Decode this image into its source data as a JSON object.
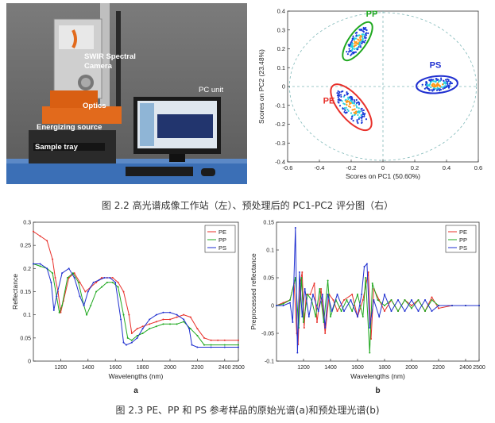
{
  "photo": {
    "labels": {
      "camera_line1": "SWIR Spectral",
      "camera_line2": "Camera",
      "pc_unit": "PC unit",
      "optics": "Optics",
      "energizing_source": "Energizing source",
      "sample_tray": "Sample tray"
    }
  },
  "captions": {
    "fig22": "图 2.2  高光谱成像工作站（左）、预处理后的 PC1-PC2 评分图（右）",
    "fig23": "图 2.3 PE、PP 和 PS 参考样品的原始光谱(a)和预处理光谱(b)"
  },
  "colors": {
    "PE": "#e8302a",
    "PP": "#1fa81f",
    "PS": "#2030d0",
    "ellipse_guide": "#7fb8b8"
  },
  "chart_data": [
    {
      "type": "scatter",
      "xlabel": "Scores on PC1 (50.60%)",
      "ylabel": "Scores on PC2 (23.48%)",
      "xlim": [
        -0.6,
        0.6
      ],
      "ylim": [
        -0.4,
        0.4
      ],
      "xticks": [
        "-0.6",
        "-0.4",
        "-0.2",
        "0",
        "0.2",
        "0.4",
        "0.6"
      ],
      "yticks": [
        "0.4",
        "0.3",
        "0.2",
        "0.1",
        "0",
        "-0.1",
        "-0.2",
        "-0.3",
        "-0.4"
      ],
      "grid": false,
      "clusters": [
        {
          "name": "PP",
          "center": [
            -0.16,
            0.24
          ],
          "semi_axes": [
            0.055,
            0.12
          ],
          "angle_deg": 35
        },
        {
          "name": "PS",
          "center": [
            0.34,
            0.01
          ],
          "semi_axes": [
            0.13,
            0.045
          ],
          "angle_deg": -5
        },
        {
          "name": "PE",
          "center": [
            -0.2,
            -0.11
          ],
          "semi_axes": [
            0.075,
            0.15
          ],
          "angle_deg": -40
        }
      ]
    },
    {
      "type": "line",
      "panel_label": "a",
      "xlabel": "Wavelengths (nm)",
      "ylabel": "Reflectance",
      "xlim": [
        1000,
        2500
      ],
      "ylim": [
        0,
        0.3
      ],
      "xticks": [
        "1200",
        "1400",
        "1600",
        "1800",
        "2000",
        "2200",
        "2400",
        "2500"
      ],
      "yticks": [
        "0.3",
        "0.25",
        "0.2",
        "0.15",
        "0.1",
        "0.05",
        "0"
      ],
      "legend": "top-right",
      "series": [
        {
          "name": "PE",
          "points": [
            [
              1000,
              0.28
            ],
            [
              1050,
              0.27
            ],
            [
              1100,
              0.26
            ],
            [
              1140,
              0.22
            ],
            [
              1160,
              0.18
            ],
            [
              1180,
              0.15
            ],
            [
              1200,
              0.105
            ],
            [
              1220,
              0.13
            ],
            [
              1260,
              0.18
            ],
            [
              1300,
              0.19
            ],
            [
              1340,
              0.17
            ],
            [
              1380,
              0.15
            ],
            [
              1420,
              0.16
            ],
            [
              1460,
              0.17
            ],
            [
              1500,
              0.18
            ],
            [
              1540,
              0.18
            ],
            [
              1580,
              0.18
            ],
            [
              1620,
              0.17
            ],
            [
              1660,
              0.15
            ],
            [
              1700,
              0.1
            ],
            [
              1720,
              0.06
            ],
            [
              1760,
              0.07
            ],
            [
              1800,
              0.075
            ],
            [
              1850,
              0.08
            ],
            [
              1900,
              0.085
            ],
            [
              1950,
              0.09
            ],
            [
              2000,
              0.09
            ],
            [
              2050,
              0.095
            ],
            [
              2100,
              0.1
            ],
            [
              2150,
              0.095
            ],
            [
              2200,
              0.07
            ],
            [
              2250,
              0.05
            ],
            [
              2300,
              0.045
            ],
            [
              2350,
              0.045
            ],
            [
              2400,
              0.045
            ],
            [
              2500,
              0.045
            ]
          ]
        },
        {
          "name": "PP",
          "points": [
            [
              1000,
              0.21
            ],
            [
              1050,
              0.205
            ],
            [
              1100,
              0.2
            ],
            [
              1140,
              0.19
            ],
            [
              1170,
              0.14
            ],
            [
              1190,
              0.105
            ],
            [
              1210,
              0.12
            ],
            [
              1250,
              0.18
            ],
            [
              1290,
              0.19
            ],
            [
              1330,
              0.17
            ],
            [
              1370,
              0.12
            ],
            [
              1390,
              0.1
            ],
            [
              1420,
              0.12
            ],
            [
              1460,
              0.15
            ],
            [
              1500,
              0.16
            ],
            [
              1540,
              0.17
            ],
            [
              1580,
              0.17
            ],
            [
              1620,
              0.16
            ],
            [
              1660,
              0.1
            ],
            [
              1690,
              0.05
            ],
            [
              1720,
              0.045
            ],
            [
              1760,
              0.055
            ],
            [
              1800,
              0.06
            ],
            [
              1850,
              0.07
            ],
            [
              1900,
              0.075
            ],
            [
              1950,
              0.08
            ],
            [
              2000,
              0.08
            ],
            [
              2050,
              0.08
            ],
            [
              2100,
              0.085
            ],
            [
              2150,
              0.07
            ],
            [
              2200,
              0.055
            ],
            [
              2250,
              0.035
            ],
            [
              2300,
              0.035
            ],
            [
              2400,
              0.035
            ],
            [
              2500,
              0.035
            ]
          ]
        },
        {
          "name": "PS",
          "points": [
            [
              1000,
              0.21
            ],
            [
              1050,
              0.21
            ],
            [
              1100,
              0.2
            ],
            [
              1130,
              0.17
            ],
            [
              1150,
              0.11
            ],
            [
              1170,
              0.14
            ],
            [
              1210,
              0.19
            ],
            [
              1260,
              0.2
            ],
            [
              1300,
              0.18
            ],
            [
              1340,
              0.14
            ],
            [
              1370,
              0.12
            ],
            [
              1400,
              0.15
            ],
            [
              1440,
              0.17
            ],
            [
              1480,
              0.175
            ],
            [
              1520,
              0.18
            ],
            [
              1560,
              0.18
            ],
            [
              1600,
              0.17
            ],
            [
              1640,
              0.09
            ],
            [
              1660,
              0.04
            ],
            [
              1680,
              0.035
            ],
            [
              1720,
              0.04
            ],
            [
              1760,
              0.05
            ],
            [
              1800,
              0.07
            ],
            [
              1850,
              0.09
            ],
            [
              1900,
              0.1
            ],
            [
              1950,
              0.105
            ],
            [
              2000,
              0.105
            ],
            [
              2050,
              0.1
            ],
            [
              2100,
              0.09
            ],
            [
              2140,
              0.07
            ],
            [
              2160,
              0.035
            ],
            [
              2200,
              0.03
            ],
            [
              2300,
              0.03
            ],
            [
              2400,
              0.03
            ],
            [
              2500,
              0.03
            ]
          ]
        }
      ]
    },
    {
      "type": "line",
      "panel_label": "b",
      "xlabel": "Wavelengths (nm)",
      "ylabel": "Preprocessed reflectance",
      "xlim": [
        1000,
        2500
      ],
      "ylim": [
        -0.1,
        0.15
      ],
      "xticks": [
        "1200",
        "1400",
        "1600",
        "1800",
        "2000",
        "2200",
        "2400",
        "2500"
      ],
      "yticks": [
        "0.15",
        "0.1",
        "0.05",
        "0",
        "-0.05",
        "-0.1"
      ],
      "legend": "top-right",
      "series": [
        {
          "name": "PE",
          "points": [
            [
              1000,
              0
            ],
            [
              1050,
              0.005
            ],
            [
              1100,
              0.01
            ],
            [
              1130,
              0.04
            ],
            [
              1150,
              -0.05
            ],
            [
              1160,
              -0.07
            ],
            [
              1175,
              0.04
            ],
            [
              1190,
              0.06
            ],
            [
              1205,
              -0.04
            ],
            [
              1220,
              0.02
            ],
            [
              1250,
              0.02
            ],
            [
              1280,
              0.04
            ],
            [
              1300,
              -0.03
            ],
            [
              1330,
              0.03
            ],
            [
              1360,
              -0.05
            ],
            [
              1390,
              0.02
            ],
            [
              1420,
              0.01
            ],
            [
              1450,
              -0.01
            ],
            [
              1500,
              0.01
            ],
            [
              1560,
              0.02
            ],
            [
              1600,
              -0.02
            ],
            [
              1640,
              0.01
            ],
            [
              1680,
              0.06
            ],
            [
              1700,
              -0.06
            ],
            [
              1720,
              0.03
            ],
            [
              1760,
              0.01
            ],
            [
              1800,
              -0.01
            ],
            [
              1850,
              0.01
            ],
            [
              1900,
              -0.01
            ],
            [
              1950,
              0.01
            ],
            [
              2000,
              0
            ],
            [
              2050,
              0.01
            ],
            [
              2100,
              -0.01
            ],
            [
              2150,
              0.015
            ],
            [
              2200,
              -0.005
            ],
            [
              2300,
              0
            ],
            [
              2400,
              0
            ],
            [
              2500,
              0
            ]
          ]
        },
        {
          "name": "PP",
          "points": [
            [
              1000,
              0
            ],
            [
              1050,
              0.003
            ],
            [
              1100,
              0.01
            ],
            [
              1140,
              0.05
            ],
            [
              1165,
              -0.04
            ],
            [
              1185,
              0.05
            ],
            [
              1200,
              -0.03
            ],
            [
              1230,
              0.02
            ],
            [
              1260,
              0.01
            ],
            [
              1290,
              -0.02
            ],
            [
              1320,
              0.03
            ],
            [
              1350,
              -0.03
            ],
            [
              1380,
              0.045
            ],
            [
              1400,
              -0.02
            ],
            [
              1440,
              0.01
            ],
            [
              1480,
              -0.01
            ],
            [
              1520,
              0.01
            ],
            [
              1560,
              -0.01
            ],
            [
              1600,
              0.02
            ],
            [
              1640,
              -0.02
            ],
            [
              1660,
              0.05
            ],
            [
              1690,
              -0.085
            ],
            [
              1710,
              0.04
            ],
            [
              1750,
              0.01
            ],
            [
              1800,
              0
            ],
            [
              1850,
              0.01
            ],
            [
              1900,
              -0.01
            ],
            [
              1950,
              0.01
            ],
            [
              2000,
              -0.005
            ],
            [
              2050,
              0.01
            ],
            [
              2100,
              -0.01
            ],
            [
              2150,
              0.01
            ],
            [
              2200,
              0
            ],
            [
              2300,
              0
            ],
            [
              2400,
              0
            ],
            [
              2500,
              0
            ]
          ]
        },
        {
          "name": "PS",
          "points": [
            [
              1000,
              0
            ],
            [
              1050,
              0
            ],
            [
              1100,
              0.005
            ],
            [
              1120,
              -0.03
            ],
            [
              1140,
              0.14
            ],
            [
              1155,
              -0.085
            ],
            [
              1170,
              0.06
            ],
            [
              1190,
              -0.02
            ],
            [
              1210,
              0.03
            ],
            [
              1240,
              -0.02
            ],
            [
              1270,
              0.02
            ],
            [
              1310,
              -0.01
            ],
            [
              1340,
              0.02
            ],
            [
              1360,
              -0.04
            ],
            [
              1380,
              0.02
            ],
            [
              1410,
              -0.01
            ],
            [
              1450,
              0.02
            ],
            [
              1500,
              -0.01
            ],
            [
              1550,
              0.01
            ],
            [
              1600,
              -0.02
            ],
            [
              1630,
              0.02
            ],
            [
              1650,
              0.07
            ],
            [
              1670,
              0.075
            ],
            [
              1690,
              -0.04
            ],
            [
              1720,
              0.01
            ],
            [
              1760,
              -0.02
            ],
            [
              1800,
              0.02
            ],
            [
              1850,
              -0.01
            ],
            [
              1900,
              0.01
            ],
            [
              1950,
              -0.01
            ],
            [
              2000,
              0.01
            ],
            [
              2050,
              -0.01
            ],
            [
              2100,
              0.01
            ],
            [
              2150,
              -0.01
            ],
            [
              2200,
              0
            ],
            [
              2300,
              0
            ],
            [
              2400,
              0
            ],
            [
              2500,
              0
            ]
          ]
        }
      ]
    }
  ]
}
